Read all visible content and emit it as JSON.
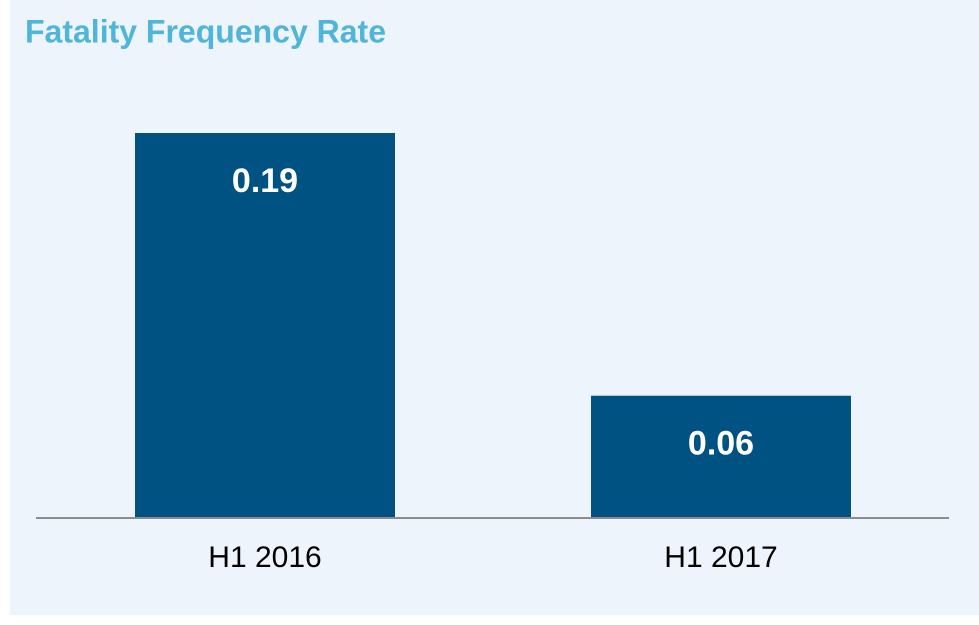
{
  "chart_data": {
    "type": "bar",
    "title": "Fatality Frequency Rate",
    "categories": [
      "H1 2016",
      "H1 2017"
    ],
    "values": [
      0.19,
      0.06
    ],
    "color": "#005282"
  }
}
